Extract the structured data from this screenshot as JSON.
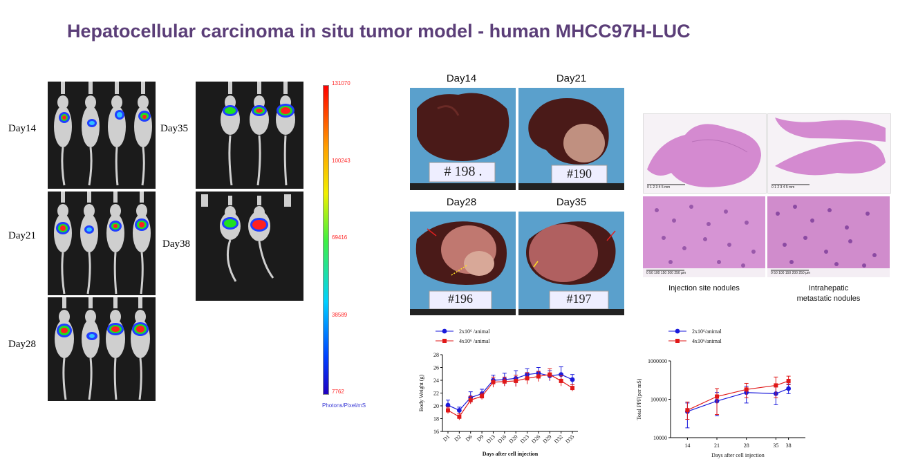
{
  "title": "Hepatocellular carcinoma in situ tumor model - human MHCC97H-LUC",
  "ivis": {
    "days_left": [
      "Day14",
      "Day21",
      "Day28"
    ],
    "days_right": [
      "Day35",
      "Day38"
    ]
  },
  "colorbar": {
    "ticks": [
      "131070",
      "100243",
      "69416",
      "38589",
      "7762"
    ],
    "unit": "Photons/Pixel/mS",
    "tick_color": "#ff2a2a",
    "unit_color": "#3a3ad6"
  },
  "liver_photos": {
    "labels": [
      "Day14",
      "Day21",
      "Day28",
      "Day35"
    ],
    "tags": [
      "# 198 .",
      "#190",
      "#196",
      "#197"
    ]
  },
  "histology": {
    "caption_left": "Injection site nodules",
    "caption_right_line1": "Intrahepatic",
    "caption_right_line2": "metastatic nodules",
    "scale_left_top": "0 1 2 3 4 5 mm",
    "scale_right_top": "0 1 2 3 4 5 mm",
    "scale_left_bottom": "0 50 100 150 200 250 µm",
    "scale_right_bottom": "0 50 100 150 200 250 µm"
  },
  "chart_data": [
    {
      "type": "line",
      "title": "",
      "xlabel": "Days after  cell injection",
      "ylabel": "Body Weight (g)",
      "ylim": [
        16,
        28
      ],
      "yticks": [
        "16",
        "18",
        "20",
        "22",
        "24",
        "26",
        "28"
      ],
      "categories": [
        "D1",
        "D2",
        "D6",
        "D9",
        "D13",
        "D16",
        "D20",
        "D23",
        "D26",
        "D29",
        "D32",
        "D35"
      ],
      "legend_position": "top-left",
      "series": [
        {
          "name": "2x10⁶ /animal",
          "color": "#1a1adb",
          "marker": "circle",
          "values": [
            20.1,
            19.3,
            21.3,
            21.9,
            24.0,
            24.1,
            24.3,
            24.9,
            25.1,
            24.7,
            24.9,
            24.1
          ],
          "errors": [
            0.8,
            0.5,
            0.9,
            0.7,
            0.8,
            1.0,
            1.2,
            0.9,
            0.9,
            0.8,
            1.2,
            0.8
          ]
        },
        {
          "name": "4x10⁶ /animal",
          "color": "#e01818",
          "marker": "square",
          "values": [
            19.3,
            18.3,
            20.9,
            21.5,
            23.7,
            23.8,
            23.9,
            24.3,
            24.6,
            24.9,
            23.9,
            22.8
          ],
          "errors": [
            0.5,
            0.5,
            0.6,
            0.5,
            0.8,
            0.7,
            0.9,
            0.9,
            0.8,
            0.9,
            0.8,
            0.5
          ]
        }
      ]
    },
    {
      "type": "line",
      "title": "",
      "xlabel": "Days after  cell injection",
      "ylabel": "Total PPF(per mS)",
      "y_scale": "log",
      "ylim": [
        10000,
        1000000
      ],
      "yticks": [
        "10000",
        "100000",
        "1000000"
      ],
      "x": [
        14,
        21,
        28,
        35,
        38
      ],
      "xticks": [
        "14",
        "21",
        "28",
        "35",
        "38"
      ],
      "legend_position": "top-left",
      "series": [
        {
          "name": "2x10⁶/animal",
          "color": "#1a1adb",
          "marker": "circle",
          "values": [
            48000,
            90000,
            150000,
            140000,
            190000
          ],
          "err_low": [
            18000,
            37000,
            80000,
            72000,
            140000
          ],
          "err_high": [
            80000,
            150000,
            220000,
            220000,
            250000
          ]
        },
        {
          "name": "4x10⁶/animal",
          "color": "#e01818",
          "marker": "square",
          "values": [
            52000,
            118000,
            180000,
            230000,
            300000
          ],
          "err_low": [
            30000,
            40000,
            110000,
            110000,
            240000
          ],
          "err_high": [
            85000,
            190000,
            260000,
            380000,
            400000
          ]
        }
      ]
    }
  ]
}
